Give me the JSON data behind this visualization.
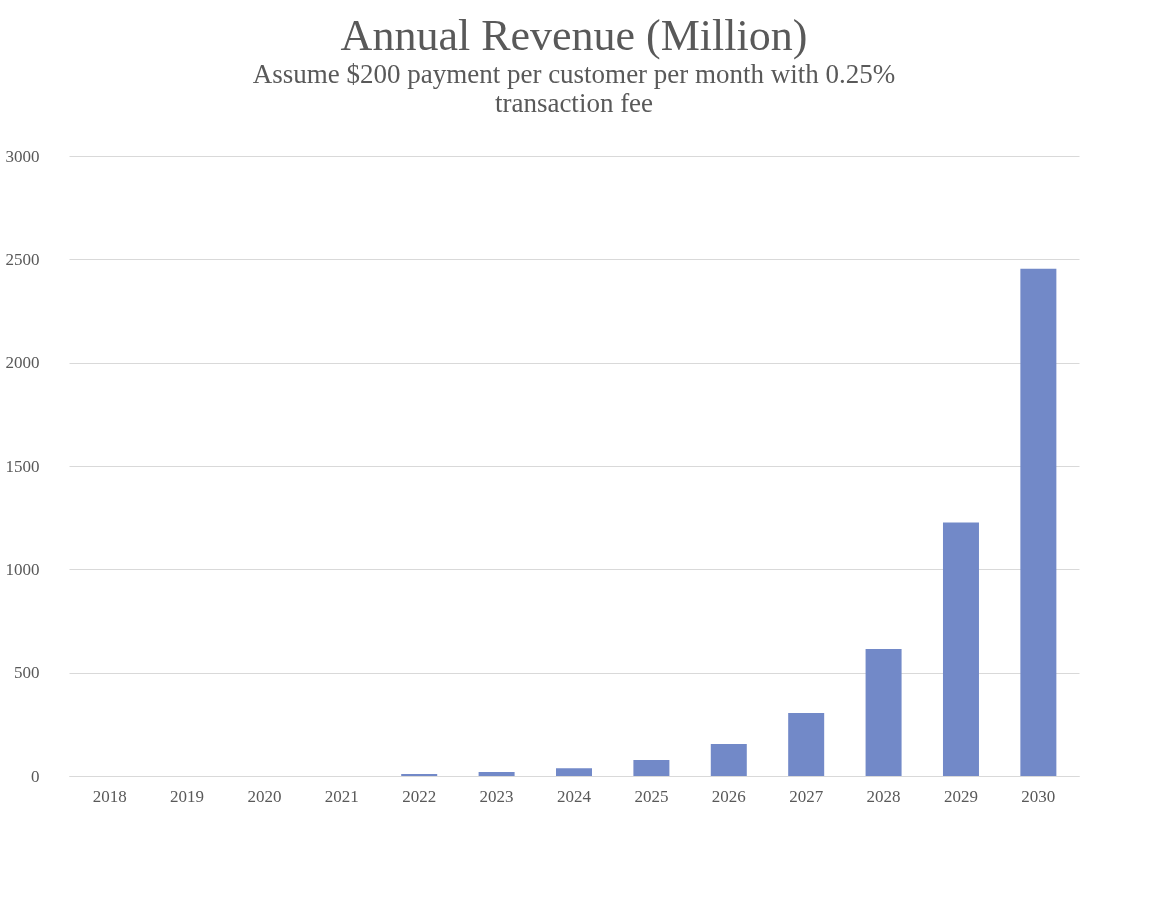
{
  "chart_data": {
    "type": "bar",
    "title": "Annual Revenue (Million)",
    "subtitle": [
      "Assume $200 payment per customer per month with 0.25%",
      "transaction fee"
    ],
    "categories": [
      "2018",
      "2019",
      "2020",
      "2021",
      "2022",
      "2023",
      "2024",
      "2025",
      "2026",
      "2027",
      "2028",
      "2029",
      "2030"
    ],
    "values": [
      0,
      0,
      0,
      0,
      10,
      19,
      38,
      77,
      155,
      305,
      614,
      1227,
      2455
    ],
    "color": "#7289c8",
    "ylim": [
      0,
      3000
    ],
    "yticks": [
      0,
      500,
      1000,
      1500,
      2000,
      2500,
      3000
    ],
    "grid": "y"
  }
}
